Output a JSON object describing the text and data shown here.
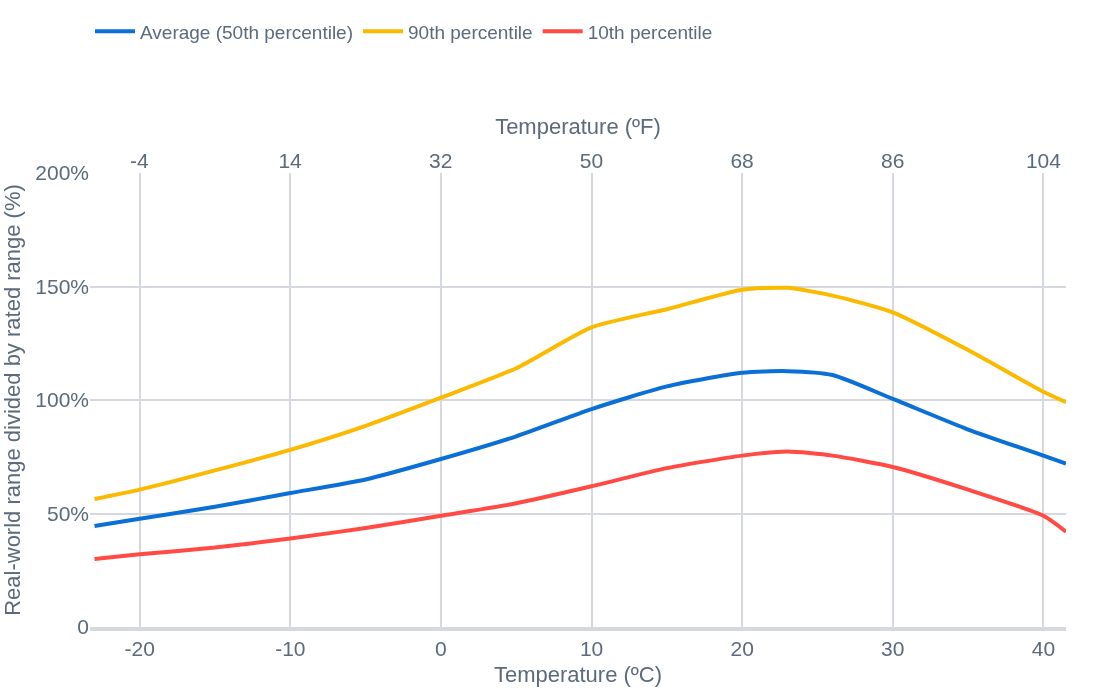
{
  "chart_data": {
    "type": "line",
    "xlabel": "Temperature (ºC)",
    "x2label": "Temperature (ºF)",
    "ylabel": "Real-world range divided by rated range (%)",
    "x": [
      -23,
      -20,
      -15,
      -10,
      -5,
      0,
      5,
      10,
      15,
      20,
      23,
      26,
      30,
      35,
      40,
      41.5
    ],
    "series": [
      {
        "name": "Average (50th percentile)",
        "color": "#0a6fd6",
        "values": [
          44.5,
          47.7,
          53,
          59,
          65,
          74,
          84,
          96,
          106,
          112,
          112.7,
          111,
          100.5,
          87,
          75.5,
          72
        ]
      },
      {
        "name": "90th percentile",
        "color": "#fbb900",
        "values": [
          56.4,
          60.5,
          69,
          78,
          88.6,
          101,
          114,
          132,
          140,
          148.6,
          149.4,
          146,
          138.6,
          122,
          103.6,
          99
        ]
      },
      {
        "name": "10th percentile",
        "color": "#ff4b44",
        "values": [
          30,
          32,
          35,
          39,
          43.6,
          49,
          54.5,
          62,
          70,
          75.5,
          77.3,
          75.5,
          70.5,
          60.5,
          49,
          42
        ]
      }
    ],
    "xlim": [
      -23.3,
      41.5
    ],
    "xticks": [
      -20,
      -10,
      0,
      10,
      20,
      30,
      40
    ],
    "x2lim": [
      -9.9,
      106.7
    ],
    "x2ticks": [
      -4,
      14,
      32,
      50,
      68,
      86,
      104
    ],
    "ylim": [
      0,
      200
    ],
    "yticks": [
      {
        "value": 0,
        "label": "0"
      },
      {
        "value": 50,
        "label": "50%"
      },
      {
        "value": 100,
        "label": "100%"
      },
      {
        "value": 150,
        "label": "150%"
      },
      {
        "value": 200,
        "label": "200%"
      }
    ],
    "grid": true,
    "legend": "top left",
    "marker": "none",
    "line_style": "solid"
  }
}
